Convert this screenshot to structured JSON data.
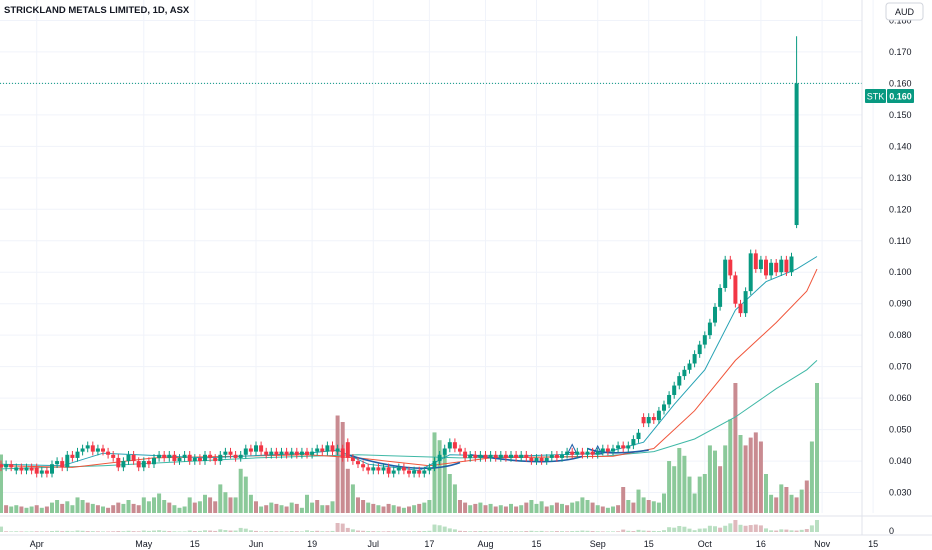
{
  "header": {
    "title": "STRICKLAND METALS LIMITED, 1D, ASX",
    "currency_button": "AUD"
  },
  "colors": {
    "up": "#089981",
    "down": "#f23645",
    "vol_up": "#8bc99a",
    "vol_down": "#c98b91",
    "ema_fast": "#26a2b4",
    "ema_mid": "#f0553a",
    "ema_slow": "#3fb8a6",
    "pattern": "#1f5ea8",
    "grid": "#f0f3fa"
  },
  "price_tag": {
    "symbol": "STK",
    "value": "0.160",
    "last": 0.16
  },
  "chart_data": {
    "type": "candlestick",
    "y_ticks": [
      "0.180",
      "0.170",
      "0.160",
      "0.150",
      "0.140",
      "0.130",
      "0.120",
      "0.110",
      "0.100",
      "0.090",
      "0.080",
      "0.070",
      "0.060",
      "0.050",
      "0.040",
      "0.030"
    ],
    "y_values": [
      0.18,
      0.17,
      0.16,
      0.15,
      0.14,
      0.13,
      0.12,
      0.11,
      0.1,
      0.09,
      0.08,
      0.07,
      0.06,
      0.05,
      0.04,
      0.03
    ],
    "ylim": [
      0.0235,
      0.1865
    ],
    "volume_axis_label": "0",
    "x_ticks": [
      {
        "label": "Apr",
        "i": 7
      },
      {
        "label": "May",
        "i": 28
      },
      {
        "label": "15",
        "i": 38
      },
      {
        "label": "Jun",
        "i": 50
      },
      {
        "label": "19",
        "i": 61
      },
      {
        "label": "Jul",
        "i": 73
      },
      {
        "label": "17",
        "i": 84
      },
      {
        "label": "Aug",
        "i": 95
      },
      {
        "label": "15",
        "i": 105
      },
      {
        "label": "Sep",
        "i": 117
      },
      {
        "label": "15",
        "i": 127
      },
      {
        "label": "Oct",
        "i": 138
      },
      {
        "label": "16",
        "i": 149
      },
      {
        "label": "Nov",
        "i": 161
      },
      {
        "label": "15",
        "i": 171
      }
    ],
    "candles": [
      [
        0.039,
        0.038
      ],
      [
        0.038,
        0.039
      ],
      [
        0.039,
        0.038
      ],
      [
        0.037,
        0.038
      ],
      [
        0.038,
        0.037
      ],
      [
        0.037,
        0.038
      ],
      [
        0.038,
        0.037
      ],
      [
        0.038,
        0.036
      ],
      [
        0.036,
        0.037
      ],
      [
        0.037,
        0.036
      ],
      [
        0.036,
        0.039
      ],
      [
        0.039,
        0.04
      ],
      [
        0.04,
        0.038
      ],
      [
        0.038,
        0.042
      ],
      [
        0.042,
        0.041
      ],
      [
        0.041,
        0.043
      ],
      [
        0.043,
        0.044
      ],
      [
        0.044,
        0.045
      ],
      [
        0.045,
        0.043
      ],
      [
        0.043,
        0.044
      ],
      [
        0.044,
        0.043
      ],
      [
        0.043,
        0.042
      ],
      [
        0.042,
        0.041
      ],
      [
        0.041,
        0.038
      ],
      [
        0.038,
        0.04
      ],
      [
        0.04,
        0.042
      ],
      [
        0.042,
        0.04
      ],
      [
        0.04,
        0.038
      ],
      [
        0.038,
        0.04
      ],
      [
        0.04,
        0.039
      ],
      [
        0.039,
        0.041
      ],
      [
        0.041,
        0.042
      ],
      [
        0.042,
        0.041
      ],
      [
        0.041,
        0.042
      ],
      [
        0.042,
        0.04
      ],
      [
        0.04,
        0.041
      ],
      [
        0.041,
        0.042
      ],
      [
        0.042,
        0.04
      ],
      [
        0.04,
        0.041
      ],
      [
        0.041,
        0.04
      ],
      [
        0.04,
        0.042
      ],
      [
        0.042,
        0.041
      ],
      [
        0.041,
        0.04
      ],
      [
        0.04,
        0.042
      ],
      [
        0.042,
        0.043
      ],
      [
        0.043,
        0.042
      ],
      [
        0.042,
        0.041
      ],
      [
        0.041,
        0.042
      ],
      [
        0.042,
        0.044
      ],
      [
        0.044,
        0.043
      ],
      [
        0.043,
        0.045
      ],
      [
        0.045,
        0.043
      ],
      [
        0.043,
        0.042
      ],
      [
        0.042,
        0.043
      ],
      [
        0.043,
        0.042
      ],
      [
        0.042,
        0.043
      ],
      [
        0.043,
        0.042
      ],
      [
        0.042,
        0.043
      ],
      [
        0.043,
        0.042
      ],
      [
        0.042,
        0.043
      ],
      [
        0.043,
        0.042
      ],
      [
        0.042,
        0.043
      ],
      [
        0.043,
        0.044
      ],
      [
        0.044,
        0.043
      ],
      [
        0.043,
        0.045
      ],
      [
        0.045,
        0.043
      ],
      [
        0.043,
        0.044
      ],
      [
        0.044,
        0.041
      ],
      [
        0.046,
        0.041
      ],
      [
        0.041,
        0.04
      ],
      [
        0.04,
        0.039
      ],
      [
        0.039,
        0.038
      ],
      [
        0.038,
        0.037
      ],
      [
        0.037,
        0.038
      ],
      [
        0.038,
        0.037
      ],
      [
        0.037,
        0.038
      ],
      [
        0.038,
        0.036
      ],
      [
        0.036,
        0.037
      ],
      [
        0.037,
        0.038
      ],
      [
        0.038,
        0.037
      ],
      [
        0.037,
        0.036
      ],
      [
        0.036,
        0.037
      ],
      [
        0.037,
        0.036
      ],
      [
        0.036,
        0.037
      ],
      [
        0.037,
        0.038
      ],
      [
        0.038,
        0.04
      ],
      [
        0.04,
        0.042
      ],
      [
        0.042,
        0.044
      ],
      [
        0.044,
        0.046
      ],
      [
        0.046,
        0.044
      ],
      [
        0.044,
        0.043
      ],
      [
        0.043,
        0.041
      ],
      [
        0.041,
        0.042
      ],
      [
        0.042,
        0.041
      ],
      [
        0.041,
        0.042
      ],
      [
        0.042,
        0.041
      ],
      [
        0.041,
        0.042
      ],
      [
        0.042,
        0.041
      ],
      [
        0.041,
        0.042
      ],
      [
        0.042,
        0.041
      ],
      [
        0.041,
        0.042
      ],
      [
        0.042,
        0.041
      ],
      [
        0.041,
        0.042
      ],
      [
        0.042,
        0.041
      ],
      [
        0.041,
        0.04
      ],
      [
        0.04,
        0.041
      ],
      [
        0.041,
        0.04
      ],
      [
        0.04,
        0.041
      ],
      [
        0.041,
        0.042
      ],
      [
        0.042,
        0.041
      ],
      [
        0.041,
        0.042
      ],
      [
        0.042,
        0.043
      ],
      [
        0.043,
        0.042
      ],
      [
        0.042,
        0.043
      ],
      [
        0.043,
        0.042
      ],
      [
        0.042,
        0.043
      ],
      [
        0.043,
        0.042
      ],
      [
        0.042,
        0.043
      ],
      [
        0.043,
        0.044
      ],
      [
        0.044,
        0.043
      ],
      [
        0.043,
        0.044
      ],
      [
        0.044,
        0.045
      ],
      [
        0.045,
        0.044
      ],
      [
        0.044,
        0.045
      ],
      [
        0.045,
        0.047
      ],
      [
        0.047,
        0.049
      ],
      [
        0.054,
        0.052
      ],
      [
        0.052,
        0.054
      ],
      [
        0.054,
        0.053
      ],
      [
        0.053,
        0.056
      ],
      [
        0.056,
        0.058
      ],
      [
        0.058,
        0.061
      ],
      [
        0.061,
        0.064
      ],
      [
        0.064,
        0.067
      ],
      [
        0.067,
        0.069
      ],
      [
        0.069,
        0.071
      ],
      [
        0.071,
        0.074
      ],
      [
        0.074,
        0.077
      ],
      [
        0.077,
        0.08
      ],
      [
        0.08,
        0.084
      ],
      [
        0.084,
        0.089
      ],
      [
        0.089,
        0.095
      ],
      [
        0.095,
        0.104
      ],
      [
        0.104,
        0.099
      ],
      [
        0.099,
        0.09
      ],
      [
        0.09,
        0.087
      ],
      [
        0.087,
        0.094
      ],
      [
        0.094,
        0.106
      ],
      [
        0.106,
        0.101
      ],
      [
        0.101,
        0.104
      ],
      [
        0.104,
        0.099
      ],
      [
        0.099,
        0.103
      ],
      [
        0.103,
        0.1
      ],
      [
        0.1,
        0.104
      ],
      [
        0.104,
        0.1
      ],
      [
        0.1,
        0.105
      ],
      [
        0.115,
        0.16
      ]
    ],
    "volumes": [
      [
        0.45,
        1
      ],
      [
        0.06,
        0
      ],
      [
        0.05,
        1
      ],
      [
        0.06,
        1
      ],
      [
        0.05,
        0
      ],
      [
        0.04,
        1
      ],
      [
        0.05,
        1
      ],
      [
        0.06,
        0
      ],
      [
        0.04,
        1
      ],
      [
        0.05,
        0
      ],
      [
        0.08,
        1
      ],
      [
        0.1,
        1
      ],
      [
        0.07,
        0
      ],
      [
        0.09,
        1
      ],
      [
        0.06,
        1
      ],
      [
        0.12,
        1
      ],
      [
        0.1,
        1
      ],
      [
        0.08,
        0
      ],
      [
        0.07,
        1
      ],
      [
        0.06,
        0
      ],
      [
        0.05,
        1
      ],
      [
        0.04,
        0
      ],
      [
        0.06,
        0
      ],
      [
        0.08,
        0
      ],
      [
        0.07,
        1
      ],
      [
        0.1,
        1
      ],
      [
        0.07,
        0
      ],
      [
        0.06,
        0
      ],
      [
        0.12,
        1
      ],
      [
        0.09,
        1
      ],
      [
        0.12,
        1
      ],
      [
        0.15,
        1
      ],
      [
        0.1,
        1
      ],
      [
        0.08,
        0
      ],
      [
        0.06,
        1
      ],
      [
        0.04,
        1
      ],
      [
        0.05,
        1
      ],
      [
        0.12,
        1
      ],
      [
        0.08,
        0
      ],
      [
        0.09,
        1
      ],
      [
        0.14,
        1
      ],
      [
        0.12,
        0
      ],
      [
        0.09,
        0
      ],
      [
        0.22,
        1
      ],
      [
        0.16,
        1
      ],
      [
        0.12,
        0
      ],
      [
        0.12,
        1
      ],
      [
        0.34,
        1
      ],
      [
        0.28,
        1
      ],
      [
        0.14,
        1
      ],
      [
        0.09,
        0
      ],
      [
        0.05,
        1
      ],
      [
        0.06,
        0
      ],
      [
        0.08,
        1
      ],
      [
        0.07,
        0
      ],
      [
        0.06,
        1
      ],
      [
        0.05,
        0
      ],
      [
        0.08,
        1
      ],
      [
        0.07,
        0
      ],
      [
        0.04,
        1
      ],
      [
        0.14,
        1
      ],
      [
        0.08,
        1
      ],
      [
        0.1,
        0
      ],
      [
        0.06,
        1
      ],
      [
        0.06,
        0
      ],
      [
        0.09,
        1
      ],
      [
        0.75,
        0
      ],
      [
        0.7,
        0
      ],
      [
        0.34,
        0
      ],
      [
        0.22,
        1
      ],
      [
        0.12,
        0
      ],
      [
        0.1,
        0
      ],
      [
        0.08,
        1
      ],
      [
        0.07,
        0
      ],
      [
        0.06,
        1
      ],
      [
        0.05,
        0
      ],
      [
        0.07,
        0
      ],
      [
        0.06,
        1
      ],
      [
        0.05,
        0
      ],
      [
        0.04,
        1
      ],
      [
        0.05,
        0
      ],
      [
        0.06,
        1
      ],
      [
        0.07,
        0
      ],
      [
        0.08,
        1
      ],
      [
        0.1,
        1
      ],
      [
        0.62,
        1
      ],
      [
        0.56,
        1
      ],
      [
        0.45,
        1
      ],
      [
        0.3,
        1
      ],
      [
        0.22,
        1
      ],
      [
        0.1,
        0
      ],
      [
        0.08,
        0
      ],
      [
        0.06,
        1
      ],
      [
        0.07,
        0
      ],
      [
        0.08,
        1
      ],
      [
        0.06,
        0
      ],
      [
        0.07,
        1
      ],
      [
        0.05,
        0
      ],
      [
        0.06,
        1
      ],
      [
        0.05,
        0
      ],
      [
        0.07,
        1
      ],
      [
        0.05,
        0
      ],
      [
        0.06,
        1
      ],
      [
        0.08,
        0
      ],
      [
        0.1,
        1
      ],
      [
        0.07,
        1
      ],
      [
        0.09,
        1
      ],
      [
        0.05,
        0
      ],
      [
        0.06,
        1
      ],
      [
        0.08,
        0
      ],
      [
        0.07,
        1
      ],
      [
        0.06,
        0
      ],
      [
        0.08,
        1
      ],
      [
        0.09,
        1
      ],
      [
        0.12,
        1
      ],
      [
        0.1,
        1
      ],
      [
        0.08,
        0
      ],
      [
        0.06,
        1
      ],
      [
        0.05,
        0
      ],
      [
        0.04,
        1
      ],
      [
        0.05,
        1
      ],
      [
        0.06,
        0
      ],
      [
        0.2,
        0
      ],
      [
        0.1,
        1
      ],
      [
        0.08,
        0
      ],
      [
        0.18,
        1
      ],
      [
        0.12,
        1
      ],
      [
        0.1,
        0
      ],
      [
        0.09,
        1
      ],
      [
        0.08,
        1
      ],
      [
        0.15,
        1
      ],
      [
        0.4,
        1
      ],
      [
        0.36,
        1
      ],
      [
        0.5,
        1
      ],
      [
        0.44,
        1
      ],
      [
        0.28,
        1
      ],
      [
        0.15,
        1
      ],
      [
        0.28,
        1
      ],
      [
        0.3,
        1
      ],
      [
        0.52,
        1
      ],
      [
        0.48,
        1
      ],
      [
        0.36,
        0
      ],
      [
        0.52,
        1
      ],
      [
        0.72,
        1
      ],
      [
        1.0,
        0
      ],
      [
        0.6,
        1
      ],
      [
        0.52,
        0
      ],
      [
        0.58,
        0
      ],
      [
        0.62,
        0
      ],
      [
        0.55,
        0
      ],
      [
        0.3,
        1
      ],
      [
        0.14,
        1
      ],
      [
        0.12,
        0
      ],
      [
        0.22,
        1
      ],
      [
        0.2,
        0
      ],
      [
        0.14,
        1
      ],
      [
        0.12,
        0
      ],
      [
        0.18,
        1
      ],
      [
        0.25,
        0
      ],
      [
        0.55,
        1
      ],
      [
        1.0,
        1
      ]
    ],
    "ema_fast": [
      [
        0,
        0.039
      ],
      [
        12,
        0.0385
      ],
      [
        20,
        0.0425
      ],
      [
        40,
        0.041
      ],
      [
        60,
        0.0425
      ],
      [
        66,
        0.0435
      ],
      [
        72,
        0.039
      ],
      [
        82,
        0.037
      ],
      [
        88,
        0.042
      ],
      [
        100,
        0.0415
      ],
      [
        118,
        0.0425
      ],
      [
        126,
        0.046
      ],
      [
        132,
        0.058
      ],
      [
        138,
        0.069
      ],
      [
        144,
        0.088
      ],
      [
        150,
        0.097
      ],
      [
        156,
        0.101
      ],
      [
        160,
        0.105
      ]
    ],
    "ema_mid": [
      [
        0,
        0.0385
      ],
      [
        14,
        0.038
      ],
      [
        30,
        0.041
      ],
      [
        60,
        0.042
      ],
      [
        70,
        0.041
      ],
      [
        84,
        0.0385
      ],
      [
        96,
        0.041
      ],
      [
        120,
        0.0415
      ],
      [
        128,
        0.044
      ],
      [
        136,
        0.056
      ],
      [
        144,
        0.072
      ],
      [
        152,
        0.084
      ],
      [
        158,
        0.094
      ],
      [
        160,
        0.101
      ]
    ],
    "ema_slow": [
      [
        0,
        0.0375
      ],
      [
        20,
        0.0385
      ],
      [
        50,
        0.041
      ],
      [
        70,
        0.042
      ],
      [
        90,
        0.041
      ],
      [
        118,
        0.0415
      ],
      [
        128,
        0.043
      ],
      [
        136,
        0.047
      ],
      [
        144,
        0.054
      ],
      [
        152,
        0.063
      ],
      [
        158,
        0.069
      ],
      [
        160,
        0.072
      ]
    ],
    "pattern_curves": [
      [
        [
          68,
          0.042
        ],
        [
          76,
          0.038
        ],
        [
          84,
          0.036
        ],
        [
          90,
          0.0395
        ]
      ],
      [
        [
          92,
          0.042
        ],
        [
          100,
          0.04
        ],
        [
          108,
          0.0385
        ],
        [
          114,
          0.0415
        ]
      ],
      [
        [
          115,
          0.044
        ],
        [
          118,
          0.042
        ],
        [
          123,
          0.0425
        ],
        [
          127,
          0.0435
        ]
      ]
    ],
    "pattern_triangles": [
      [
        112,
        0.044
      ],
      [
        117,
        0.0435
      ]
    ],
    "last_candle_high": 0.175,
    "last_candle_low": 0.114
  }
}
